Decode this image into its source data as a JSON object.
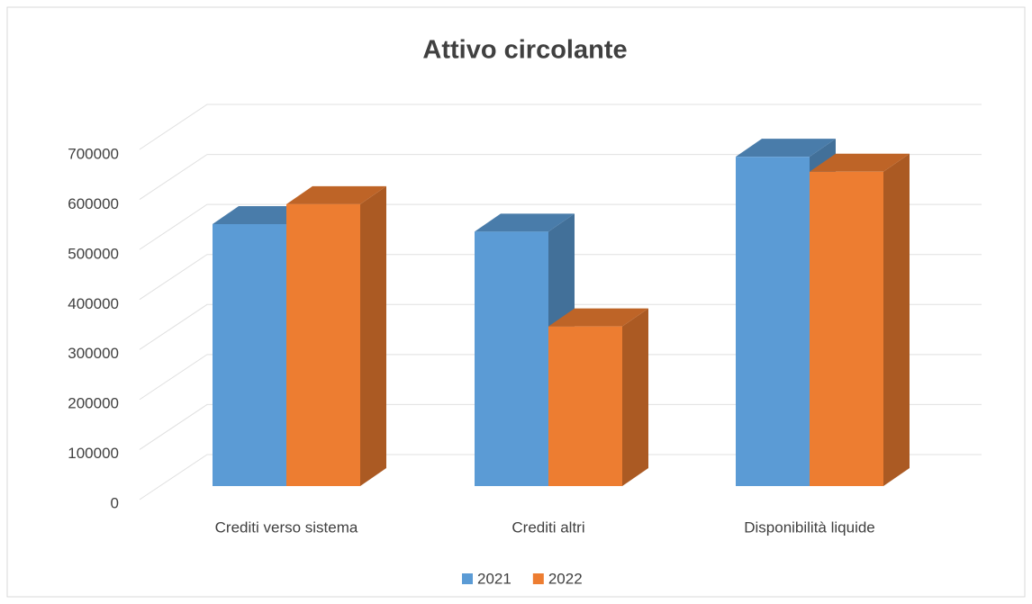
{
  "chart_data": {
    "type": "bar3d",
    "title": "Attivo circolante",
    "categories": [
      "Crediti verso sistema",
      "Crediti altri",
      "Disponibilità liquide"
    ],
    "series": [
      {
        "name": "2021",
        "color": "#5b9bd5",
        "values": [
          525000,
          510000,
          660000
        ]
      },
      {
        "name": "2022",
        "color": "#ed7d31",
        "values": [
          565000,
          320000,
          630000
        ]
      }
    ],
    "ylim": [
      0,
      700000
    ],
    "yticks": [
      0,
      100000,
      200000,
      300000,
      400000,
      500000,
      600000,
      700000
    ],
    "grid": true,
    "legend": "bottom"
  }
}
